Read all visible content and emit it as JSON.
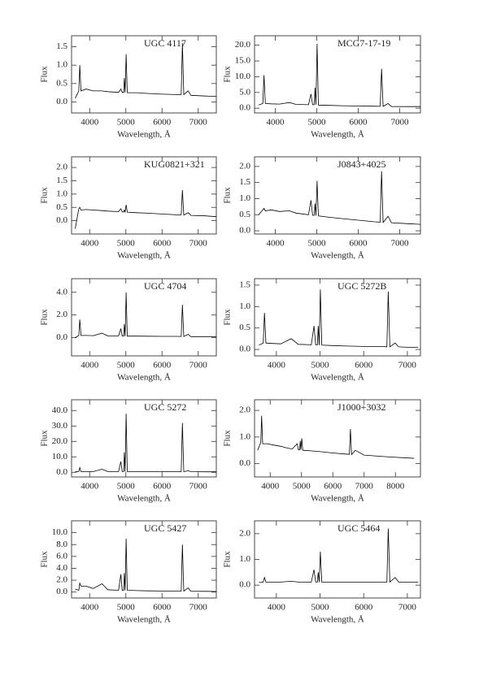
{
  "chart_data": [
    {
      "type": "line",
      "title": "UGC 4117",
      "xlabel": "Wavelength, Å",
      "ylabel": "Flux",
      "color": "#000000",
      "x": [
        3600,
        3700,
        3727,
        3760,
        3900,
        4100,
        4340,
        4500,
        4800,
        4861,
        4900,
        4940,
        4959,
        4980,
        5007,
        5040,
        5300,
        5600,
        6000,
        6400,
        6530,
        6563,
        6600,
        6720,
        6800,
        7200,
        7500
      ],
      "values": [
        0.1,
        0.3,
        1.0,
        0.3,
        0.35,
        0.3,
        0.3,
        0.28,
        0.26,
        0.35,
        0.26,
        0.26,
        0.65,
        0.26,
        1.3,
        0.25,
        0.25,
        0.23,
        0.21,
        0.2,
        0.2,
        1.6,
        0.2,
        0.3,
        0.18,
        0.16,
        0.15
      ],
      "xlim": [
        3500,
        7500
      ],
      "xticks": [
        4000,
        5000,
        6000,
        7000
      ],
      "ylim": [
        -0.3,
        1.8
      ],
      "yticks": [
        {
          "value": 0,
          "label": "0.0"
        },
        {
          "value": 0.5,
          "label": "0.5"
        },
        {
          "value": 1,
          "label": "1.0"
        },
        {
          "value": 1.5,
          "label": "1.5"
        }
      ]
    },
    {
      "type": "line",
      "title": "MCG7-17-19",
      "xlabel": "Wavelength, Å",
      "ylabel": "Flux",
      "color": "#000000",
      "x": [
        3600,
        3700,
        3727,
        3760,
        3900,
        4100,
        4340,
        4500,
        4800,
        4861,
        4900,
        4940,
        4959,
        4980,
        5007,
        5040,
        5300,
        5600,
        6000,
        6400,
        6530,
        6563,
        6600,
        6720,
        6800,
        7200,
        7500
      ],
      "values": [
        1.0,
        1.5,
        10.5,
        1.5,
        1.4,
        1.3,
        1.8,
        1.2,
        1.1,
        4.5,
        1.1,
        1.1,
        6.5,
        1.1,
        20.5,
        1.0,
        0.9,
        0.8,
        0.7,
        0.65,
        0.6,
        12.5,
        0.6,
        1.5,
        0.55,
        0.5,
        0.5
      ],
      "xlim": [
        3500,
        7500
      ],
      "xticks": [
        4000,
        5000,
        6000,
        7000
      ],
      "ylim": [
        -1.5,
        23
      ],
      "yticks": [
        {
          "value": 0,
          "label": "0.0"
        },
        {
          "value": 5,
          "label": "5.0"
        },
        {
          "value": 10,
          "label": "10.0"
        },
        {
          "value": 15,
          "label": "15.0"
        },
        {
          "value": 20,
          "label": "20.0"
        }
      ]
    },
    {
      "type": "line",
      "title": "KUG0821+321",
      "xlabel": "Wavelength, Å",
      "ylabel": "Flux",
      "color": "#000000",
      "x": [
        3600,
        3700,
        3727,
        3760,
        3900,
        4100,
        4340,
        4500,
        4800,
        4861,
        4900,
        4940,
        4959,
        4980,
        5007,
        5040,
        5300,
        5600,
        6000,
        6400,
        6530,
        6563,
        6600,
        6720,
        6800,
        7200,
        7500
      ],
      "values": [
        -0.3,
        0.45,
        0.5,
        0.4,
        0.42,
        0.4,
        0.38,
        0.36,
        0.34,
        0.45,
        0.33,
        0.33,
        0.4,
        0.33,
        0.6,
        0.32,
        0.3,
        0.28,
        0.25,
        0.22,
        0.22,
        1.15,
        0.21,
        0.3,
        0.2,
        0.18,
        0.15
      ],
      "xlim": [
        3500,
        7500
      ],
      "xticks": [
        4000,
        5000,
        6000,
        7000
      ],
      "ylim": [
        -0.5,
        2.4
      ],
      "yticks": [
        {
          "value": 0,
          "label": "0.0"
        },
        {
          "value": 0.5,
          "label": "0.5"
        },
        {
          "value": 1,
          "label": "1.0"
        },
        {
          "value": 1.5,
          "label": "1.5"
        },
        {
          "value": 2,
          "label": "2.0"
        }
      ]
    },
    {
      "type": "line",
      "title": "J0843+4025",
      "xlabel": "Wavelength, Å",
      "ylabel": "Flux",
      "color": "#000000",
      "x": [
        3600,
        3700,
        3727,
        3760,
        3900,
        4100,
        4340,
        4500,
        4800,
        4861,
        4900,
        4940,
        4959,
        4980,
        5007,
        5040,
        5300,
        5600,
        6000,
        6400,
        6530,
        6563,
        6600,
        6720,
        6800,
        7200,
        7500
      ],
      "values": [
        0.5,
        0.65,
        0.7,
        0.62,
        0.65,
        0.6,
        0.62,
        0.55,
        0.5,
        0.95,
        0.48,
        0.48,
        0.85,
        0.47,
        1.55,
        0.46,
        0.42,
        0.38,
        0.33,
        0.28,
        0.27,
        1.85,
        0.26,
        0.45,
        0.25,
        0.22,
        0.2
      ],
      "xlim": [
        3500,
        7500
      ],
      "xticks": [
        4000,
        5000,
        6000,
        7000
      ],
      "ylim": [
        -0.1,
        2.3
      ],
      "yticks": [
        {
          "value": 0,
          "label": "0.0"
        },
        {
          "value": 0.5,
          "label": "0.5"
        },
        {
          "value": 1,
          "label": "1.0"
        },
        {
          "value": 1.5,
          "label": "1.5"
        },
        {
          "value": 2,
          "label": "2.0"
        }
      ]
    },
    {
      "type": "line",
      "title": "UGC 4704",
      "xlabel": "Wavelength, Å",
      "ylabel": "Flux",
      "color": "#000000",
      "x": [
        3600,
        3700,
        3727,
        3760,
        3900,
        4100,
        4340,
        4500,
        4800,
        4861,
        4900,
        4940,
        4959,
        4980,
        5007,
        5040,
        5300,
        5600,
        6000,
        6400,
        6530,
        6563,
        6600,
        6720,
        6800,
        7200,
        7500
      ],
      "values": [
        0.0,
        0.2,
        1.6,
        0.2,
        0.2,
        0.18,
        0.4,
        0.17,
        0.16,
        0.8,
        0.15,
        0.15,
        1.2,
        0.15,
        4.0,
        0.14,
        0.14,
        0.13,
        0.12,
        0.12,
        0.11,
        2.9,
        0.11,
        0.3,
        0.1,
        0.1,
        0.1
      ],
      "xlim": [
        3500,
        7500
      ],
      "xticks": [
        4000,
        5000,
        6000,
        7000
      ],
      "ylim": [
        -1.6,
        5.2
      ],
      "yticks": [
        {
          "value": 0,
          "label": "0.0"
        },
        {
          "value": 2,
          "label": "2.0"
        },
        {
          "value": 4,
          "label": "4.0"
        }
      ]
    },
    {
      "type": "line",
      "title": "UGC 5272B",
      "xlabel": "Wavelength, Å",
      "ylabel": "Flux",
      "color": "#000000",
      "x": [
        3600,
        3700,
        3727,
        3760,
        3900,
        4100,
        4340,
        4500,
        4800,
        4861,
        4900,
        4940,
        4959,
        4980,
        5007,
        5040,
        5300,
        5600,
        6000,
        6400,
        6530,
        6563,
        6600,
        6720,
        6800,
        7000,
        7250
      ],
      "values": [
        0.1,
        0.15,
        0.85,
        0.15,
        0.14,
        0.13,
        0.25,
        0.12,
        0.11,
        0.55,
        0.11,
        0.11,
        0.55,
        0.1,
        1.4,
        0.1,
        0.09,
        0.08,
        0.07,
        0.07,
        0.06,
        1.35,
        0.06,
        0.15,
        0.06,
        0.05,
        0.05
      ],
      "xlim": [
        3500,
        7300
      ],
      "xticks": [
        4000,
        5000,
        6000,
        7000
      ],
      "ylim": [
        -0.15,
        1.65
      ],
      "yticks": [
        {
          "value": 0,
          "label": "0.0"
        },
        {
          "value": 0.5,
          "label": "0.5"
        },
        {
          "value": 1,
          "label": "1.0"
        },
        {
          "value": 1.5,
          "label": "1.5"
        }
      ]
    },
    {
      "type": "line",
      "title": "UGC 5272",
      "xlabel": "Wavelength, Å",
      "ylabel": "Flux",
      "color": "#000000",
      "x": [
        3600,
        3700,
        3727,
        3760,
        3900,
        4100,
        4340,
        4500,
        4800,
        4861,
        4900,
        4940,
        4959,
        4980,
        5007,
        5040,
        5300,
        5600,
        6000,
        6400,
        6530,
        6563,
        6600,
        6720,
        6800,
        7200,
        7500
      ],
      "values": [
        0.3,
        0.5,
        3.0,
        0.5,
        0.5,
        0.5,
        2.0,
        0.5,
        0.5,
        7.0,
        0.5,
        0.5,
        13.0,
        0.5,
        38.0,
        0.5,
        0.5,
        0.4,
        0.4,
        0.4,
        0.4,
        32.0,
        0.4,
        1.0,
        0.4,
        0.3,
        0.3
      ],
      "xlim": [
        3500,
        7500
      ],
      "xticks": [
        4000,
        5000,
        6000,
        7000
      ],
      "ylim": [
        -3,
        47
      ],
      "yticks": [
        {
          "value": 0,
          "label": "0.0"
        },
        {
          "value": 10,
          "label": "10.0"
        },
        {
          "value": 20,
          "label": "20.0"
        },
        {
          "value": 30,
          "label": "30.0"
        },
        {
          "value": 40,
          "label": "40.0"
        }
      ]
    },
    {
      "type": "line",
      "title": "J1000+3032",
      "xlabel": "Wavelength, Å",
      "ylabel": "Flux",
      "color": "#000000",
      "x": [
        3600,
        3700,
        3727,
        3760,
        3900,
        4100,
        4340,
        4500,
        4700,
        4861,
        4900,
        4940,
        4959,
        4980,
        5007,
        5040,
        5300,
        5600,
        6000,
        6400,
        6530,
        6563,
        6600,
        6720,
        7000,
        7800,
        8600
      ],
      "values": [
        0.5,
        0.8,
        1.8,
        0.75,
        0.75,
        0.7,
        0.65,
        0.6,
        0.55,
        0.75,
        0.52,
        0.52,
        0.85,
        0.52,
        0.95,
        0.5,
        0.48,
        0.45,
        0.4,
        0.36,
        0.35,
        1.3,
        0.34,
        0.5,
        0.32,
        0.25,
        0.2
      ],
      "xlim": [
        3500,
        8800
      ],
      "xticks": [
        4000,
        5000,
        6000,
        7000,
        8000
      ],
      "ylim": [
        -0.5,
        2.4
      ],
      "yticks": [
        {
          "value": 0,
          "label": "0.0"
        },
        {
          "value": 1,
          "label": "1.0"
        },
        {
          "value": 2,
          "label": "2.0"
        }
      ]
    },
    {
      "type": "line",
      "title": "UGC 5427",
      "xlabel": "Wavelength, Å",
      "ylabel": "Flux",
      "color": "#000000",
      "x": [
        3600,
        3700,
        3727,
        3760,
        3900,
        4100,
        4340,
        4500,
        4800,
        4861,
        4900,
        4940,
        4959,
        4980,
        5007,
        5040,
        5300,
        5600,
        6000,
        6400,
        6530,
        6563,
        6600,
        6720,
        6800,
        7200,
        7500
      ],
      "values": [
        0.5,
        0.3,
        1.5,
        1.0,
        1.0,
        0.6,
        1.4,
        0.4,
        0.3,
        3.0,
        0.3,
        0.3,
        3.2,
        0.3,
        9.0,
        0.3,
        0.25,
        0.2,
        0.18,
        0.16,
        0.15,
        8.0,
        0.15,
        0.7,
        0.14,
        0.12,
        0.1
      ],
      "xlim": [
        3500,
        7500
      ],
      "xticks": [
        4000,
        5000,
        6000,
        7000
      ],
      "ylim": [
        -1,
        12
      ],
      "yticks": [
        {
          "value": 0,
          "label": "0.0"
        },
        {
          "value": 2,
          "label": "2.0"
        },
        {
          "value": 4,
          "label": "4.0"
        },
        {
          "value": 6,
          "label": "6.0"
        },
        {
          "value": 8,
          "label": "8.0"
        },
        {
          "value": 10,
          "label": "10.0"
        }
      ]
    },
    {
      "type": "line",
      "title": "UGC 5464",
      "xlabel": "Wavelength, Å",
      "ylabel": "Flux",
      "color": "#000000",
      "x": [
        3600,
        3700,
        3727,
        3760,
        3900,
        4100,
        4340,
        4500,
        4800,
        4861,
        4900,
        4940,
        4959,
        4980,
        5007,
        5040,
        5300,
        5600,
        6000,
        6400,
        6530,
        6563,
        6600,
        6720,
        6800,
        7000,
        7250
      ],
      "values": [
        0.1,
        0.12,
        0.3,
        0.12,
        0.12,
        0.12,
        0.15,
        0.12,
        0.12,
        0.6,
        0.12,
        0.12,
        0.5,
        0.12,
        1.3,
        0.12,
        0.12,
        0.12,
        0.12,
        0.12,
        0.12,
        2.2,
        0.12,
        0.3,
        0.12,
        0.12,
        0.12
      ],
      "xlim": [
        3500,
        7300
      ],
      "xticks": [
        4000,
        5000,
        6000,
        7000
      ],
      "ylim": [
        -0.5,
        2.5
      ],
      "yticks": [
        {
          "value": 0,
          "label": "0.0"
        },
        {
          "value": 1,
          "label": "1.0"
        },
        {
          "value": 2,
          "label": "2.0"
        }
      ]
    }
  ]
}
